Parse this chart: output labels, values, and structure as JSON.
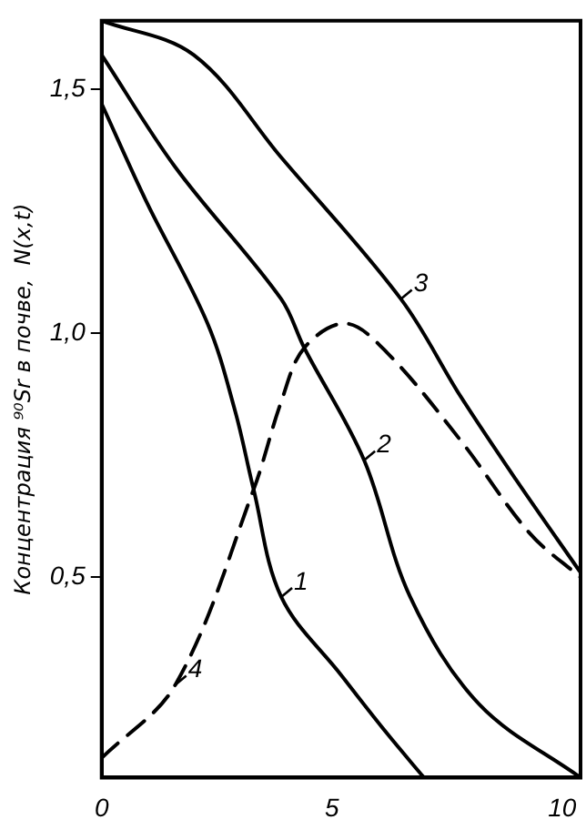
{
  "chart_data": {
    "type": "line",
    "ylabel": "Концентрация ⁹⁰Sr в почве,  N(x,t)",
    "xlim": [
      0,
      10.4
    ],
    "xticks": [
      0,
      5,
      10
    ],
    "ylim": [
      0.09,
      1.64
    ],
    "yticks": [
      {
        "value": 0.5,
        "label": "0,5"
      },
      {
        "value": 1.0,
        "label": "1,0"
      },
      {
        "value": 1.5,
        "label": "1,5"
      }
    ],
    "grid": false,
    "legend": false,
    "marker": "none",
    "series": [
      {
        "color": "#000000",
        "line_style": "solid",
        "x": [
          0,
          0.97,
          2.3,
          2.9,
          3.3,
          3.9,
          5.2,
          6.2,
          7.0
        ],
        "values": [
          1.47,
          1.27,
          1.02,
          0.84,
          0.68,
          0.46,
          0.3,
          0.18,
          0.09
        ]
      },
      {
        "color": "#000000",
        "line_style": "solid",
        "x": [
          0,
          1.6,
          3.9,
          4.4,
          5.7,
          6.7,
          8.2,
          10.4
        ],
        "values": [
          1.57,
          1.34,
          1.07,
          0.97,
          0.74,
          0.46,
          0.24,
          0.09
        ]
      },
      {
        "color": "#000000",
        "line_style": "solid",
        "x": [
          0,
          2,
          3.9,
          6.5,
          7.8,
          9,
          10.4
        ],
        "values": [
          1.64,
          1.57,
          1.36,
          1.07,
          0.87,
          0.7,
          0.51
        ]
      },
      {
        "color": "#000000",
        "line_style": "dashed",
        "x": [
          0,
          1.6,
          3.3,
          3.9,
          4.4,
          5.3,
          6.2,
          7.8,
          9.3,
          10.4
        ],
        "values": [
          0.13,
          0.28,
          0.68,
          0.86,
          0.97,
          1.02,
          0.96,
          0.78,
          0.59,
          0.5
        ]
      }
    ],
    "annotations": [
      {
        "text": "1",
        "x": 3.9,
        "y": 0.46
      },
      {
        "text": "2",
        "x": 5.7,
        "y": 0.74
      },
      {
        "text": "3",
        "x": 6.5,
        "y": 1.07
      },
      {
        "text": "4",
        "x": 1.6,
        "y": 0.28
      }
    ]
  }
}
